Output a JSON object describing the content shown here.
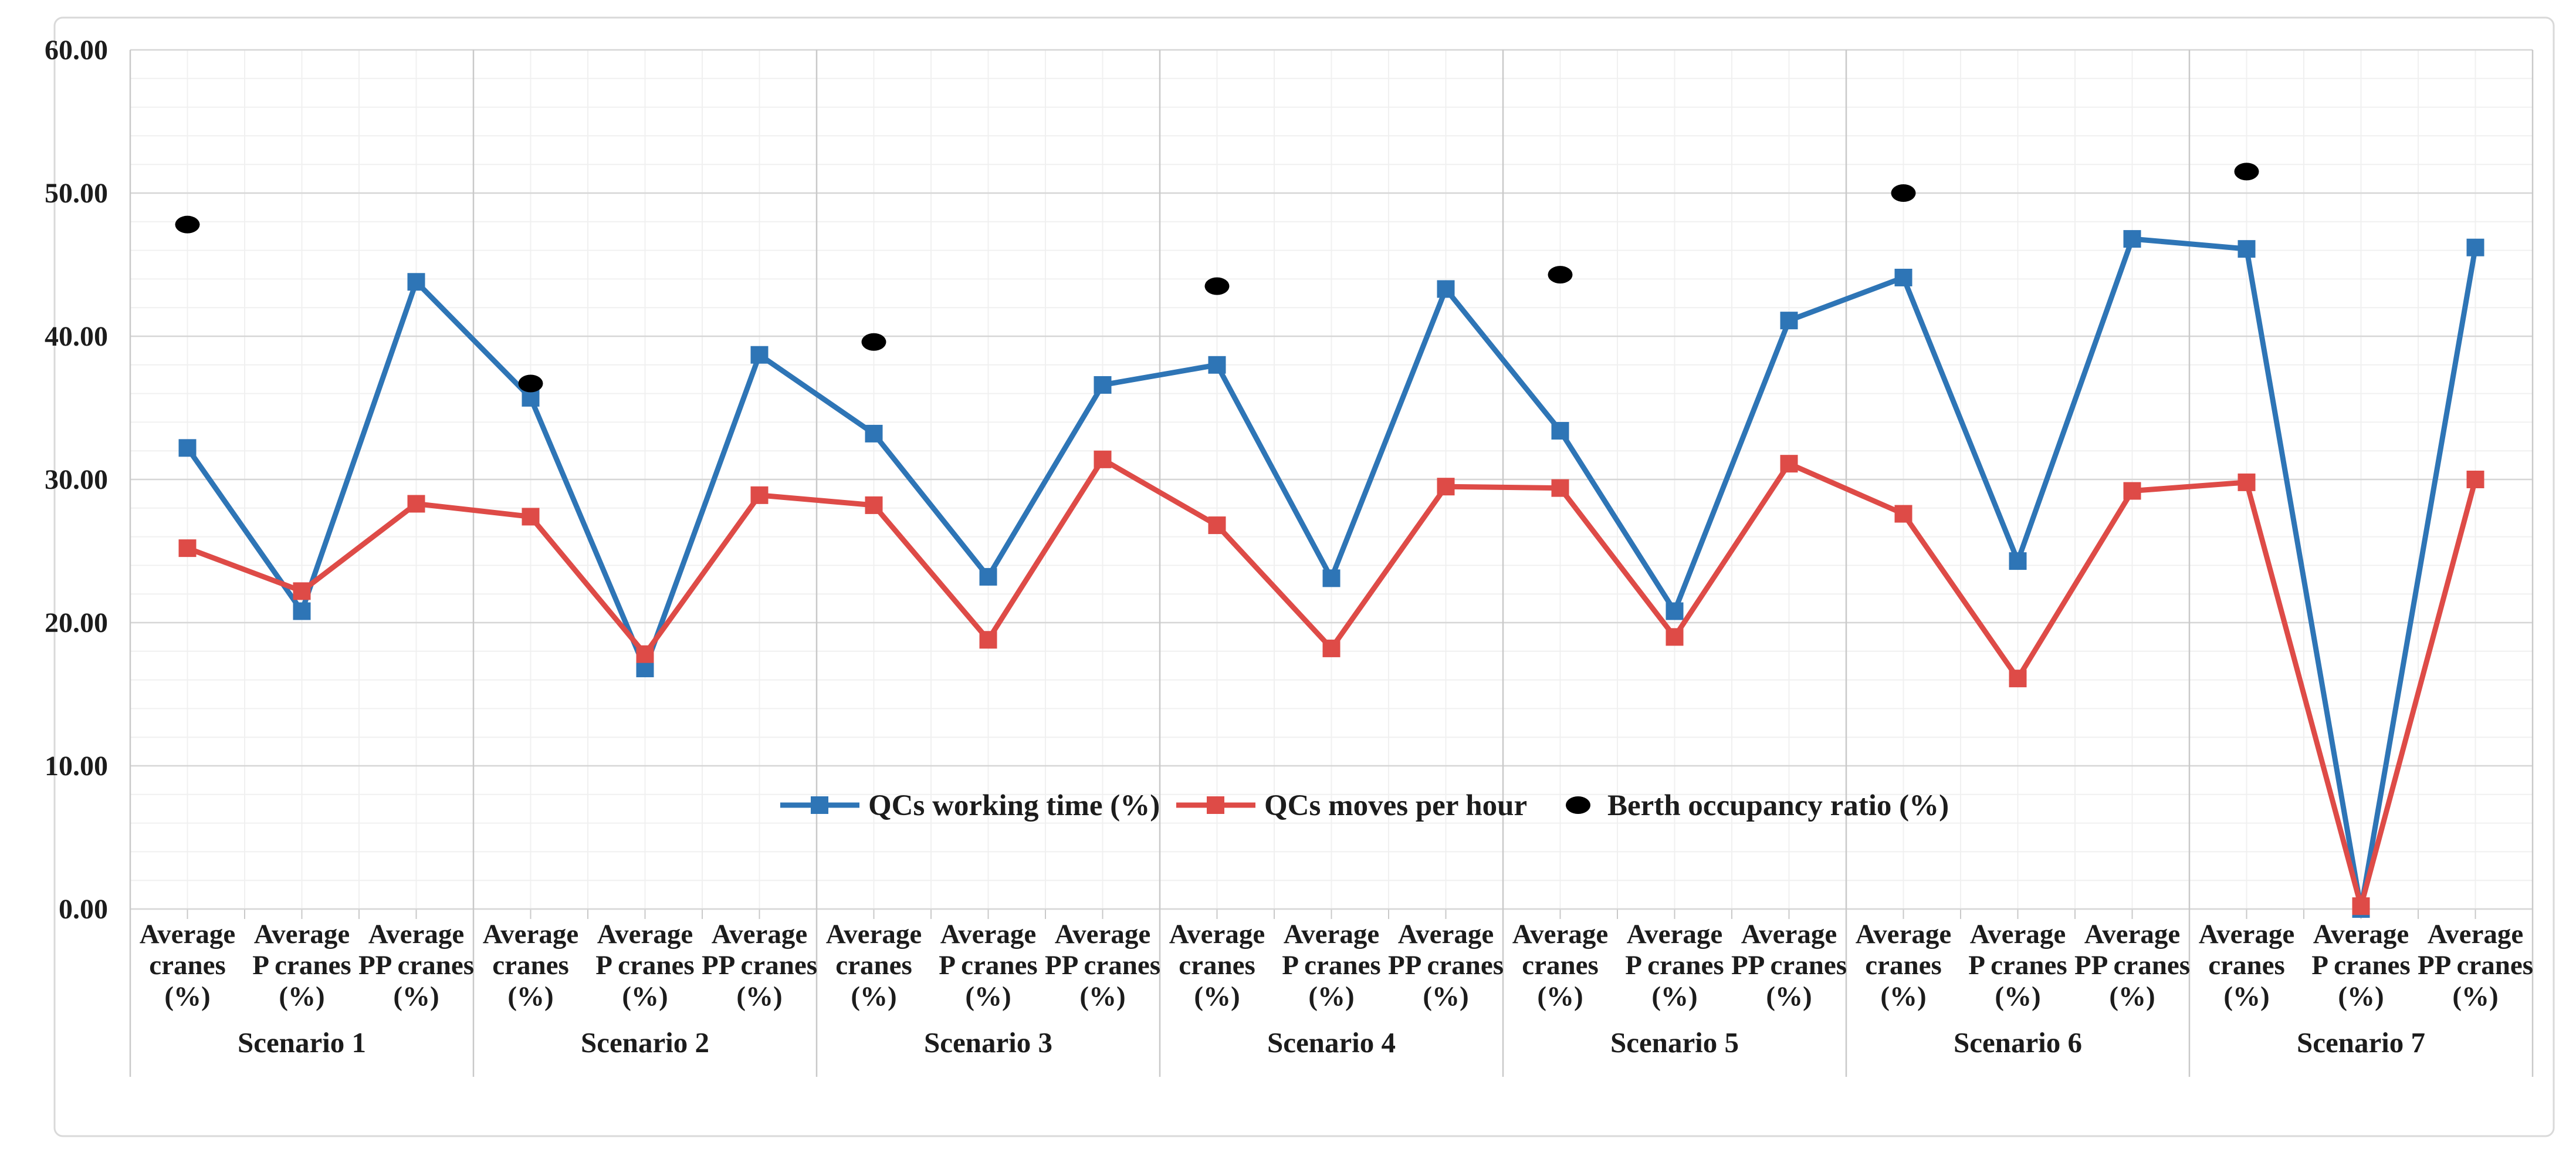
{
  "figure": {
    "background": "#ffffff",
    "border_color": "#d9d9d9",
    "text_color": "#1c1c1c",
    "gridline_minor_color": "#f0f0f0",
    "gridline_major_color": "#d6d6d6",
    "separator_color": "#c9c9c9"
  },
  "chart_data": {
    "type": "line",
    "title": "",
    "xlabel": "",
    "ylabel": "",
    "y_axis": {
      "min": 0,
      "max": 60,
      "major_step": 10,
      "minor_step": 2,
      "tick_labels": [
        "0.00",
        "10.00",
        "20.00",
        "30.00",
        "40.00",
        "50.00",
        "60.00"
      ],
      "grid": true
    },
    "scenarios": [
      "Scenario 1",
      "Scenario 2",
      "Scenario 3",
      "Scenario 4",
      "Scenario 5",
      "Scenario 6",
      "Scenario 7"
    ],
    "categories_per_scenario": [
      "Average cranes (%)",
      "Average P cranes (%)",
      "Average PP cranes (%)"
    ],
    "category_label_lines": [
      [
        "Average",
        "cranes",
        "(%)"
      ],
      [
        "Average",
        "P cranes",
        "(%)"
      ],
      [
        "Average",
        "PP cranes",
        "(%)"
      ]
    ],
    "series": [
      {
        "name": "QCs working time (%)",
        "color": "#2e75b6",
        "marker": "square",
        "values": [
          32.2,
          20.8,
          43.8,
          35.7,
          16.8,
          38.7,
          33.2,
          23.2,
          36.6,
          38.0,
          23.1,
          43.3,
          33.4,
          20.8,
          41.1,
          44.1,
          24.3,
          46.8,
          46.1,
          0.0,
          46.2
        ]
      },
      {
        "name": "QCs moves per hour",
        "color": "#de4b47",
        "marker": "square",
        "values": [
          25.2,
          22.2,
          28.3,
          27.4,
          17.8,
          28.9,
          28.2,
          18.8,
          31.4,
          26.8,
          18.2,
          29.5,
          29.4,
          19.0,
          31.1,
          27.6,
          16.1,
          29.2,
          29.8,
          0.2,
          30.0
        ]
      },
      {
        "name": "Berth occupancy ratio (%)",
        "color": "#000000",
        "marker": "dot",
        "plotted_at_category": "Average cranes (%)",
        "values_per_scenario": [
          47.8,
          36.7,
          39.6,
          43.5,
          44.3,
          50.0,
          51.5
        ]
      }
    ],
    "legend": {
      "position": "inside-bottom-center",
      "items": [
        "QCs working time (%)",
        "QCs moves per hour",
        "Berth occupancy ratio (%)"
      ]
    }
  }
}
